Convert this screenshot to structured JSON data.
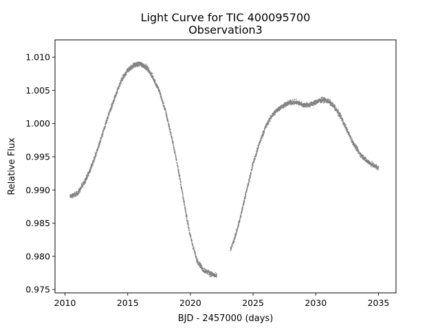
{
  "chart_data": {
    "type": "scatter",
    "title": "Light Curve for TIC 400095700",
    "subtitle": "Observation3",
    "xlabel": "BJD - 2457000 (days)",
    "ylabel": "Relative Flux",
    "xlim": [
      2009.2,
      2036.4
    ],
    "ylim": [
      0.9745,
      1.0126
    ],
    "x_ticks": [
      2010,
      2015,
      2020,
      2025,
      2030,
      2035
    ],
    "y_ticks": [
      0.975,
      0.98,
      0.985,
      0.99,
      0.995,
      1.0,
      1.005,
      1.01
    ],
    "x_tick_labels": [
      "2010",
      "2015",
      "2020",
      "2025",
      "2030",
      "2035"
    ],
    "y_tick_labels": [
      "0.975",
      "0.980",
      "0.985",
      "0.990",
      "0.995",
      "1.000",
      "1.005",
      "1.010"
    ],
    "grid": false,
    "marker_color": "#808080",
    "series": [
      {
        "name": "",
        "segments": [
          {
            "x": [
              2010.4,
              2011.0,
              2011.5,
              2012.0,
              2012.5,
              2013.0,
              2013.5,
              2014.0,
              2014.5,
              2015.0,
              2015.5,
              2016.0,
              2016.5,
              2017.0,
              2017.5,
              2018.0,
              2018.5,
              2019.0,
              2019.5,
              2020.0,
              2020.5,
              2021.0,
              2021.5,
              2022.1
            ],
            "y": [
              0.989,
              0.9895,
              0.991,
              0.993,
              0.9955,
              0.9985,
              1.0015,
              1.004,
              1.0065,
              1.008,
              1.0088,
              1.009,
              1.0085,
              1.007,
              1.005,
              1.002,
              0.998,
              0.9935,
              0.988,
              0.983,
              0.9795,
              0.978,
              0.9775,
              0.977
            ]
          },
          {
            "x": [
              2023.2,
              2023.5,
              2024.0,
              2024.5,
              2025.0,
              2025.5,
              2026.0,
              2026.5,
              2027.0,
              2027.5,
              2028.0,
              2028.5,
              2029.0,
              2029.5,
              2030.0,
              2030.5,
              2031.0,
              2031.5,
              2032.0,
              2032.5,
              2033.0,
              2033.5,
              2034.0,
              2034.5,
              2035.0
            ],
            "y": [
              0.981,
              0.9825,
              0.986,
              0.99,
              0.994,
              0.997,
              0.9995,
              1.0012,
              1.0022,
              1.0028,
              1.0032,
              1.0032,
              1.0028,
              1.0028,
              1.0032,
              1.0036,
              1.0034,
              1.0025,
              1.001,
              0.999,
              0.997,
              0.9955,
              0.9945,
              0.9938,
              0.9933
            ]
          }
        ]
      }
    ]
  }
}
